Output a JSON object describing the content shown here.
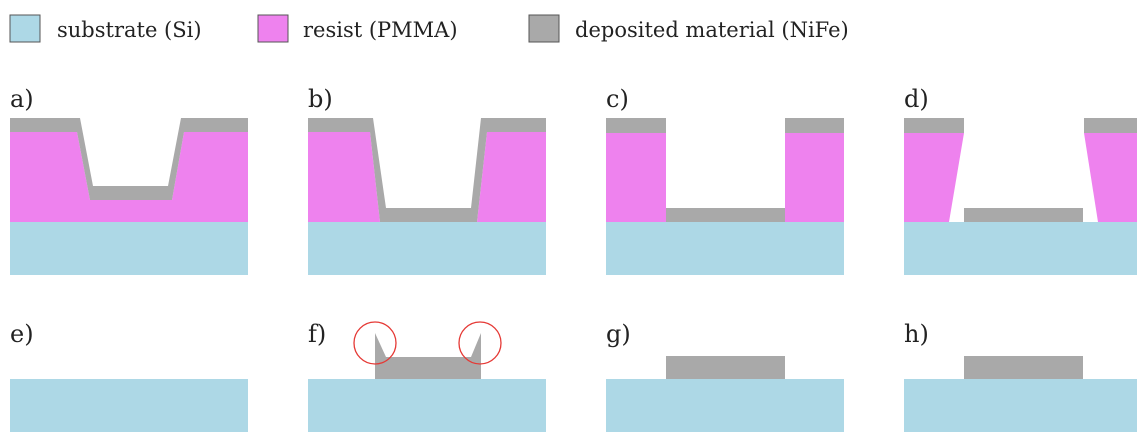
{
  "colors": {
    "substrate": "#add8e6",
    "resist": "#ee82ee",
    "deposited": "#a9a9a9",
    "highlight": "#e53935",
    "swatch_border": "#555555"
  },
  "legend": [
    {
      "key": "substrate",
      "label": "substrate (Si)"
    },
    {
      "key": "resist",
      "label": "resist (PMMA)"
    },
    {
      "key": "deposited",
      "label": "deposited material (NiFe)"
    }
  ],
  "panels": [
    {
      "id": "a",
      "label": "a)"
    },
    {
      "id": "b",
      "label": "b)"
    },
    {
      "id": "c",
      "label": "c)"
    },
    {
      "id": "d",
      "label": "d)"
    },
    {
      "id": "e",
      "label": "e)"
    },
    {
      "id": "f",
      "label": "f)"
    },
    {
      "id": "g",
      "label": "g)"
    },
    {
      "id": "h",
      "label": "h)"
    }
  ]
}
